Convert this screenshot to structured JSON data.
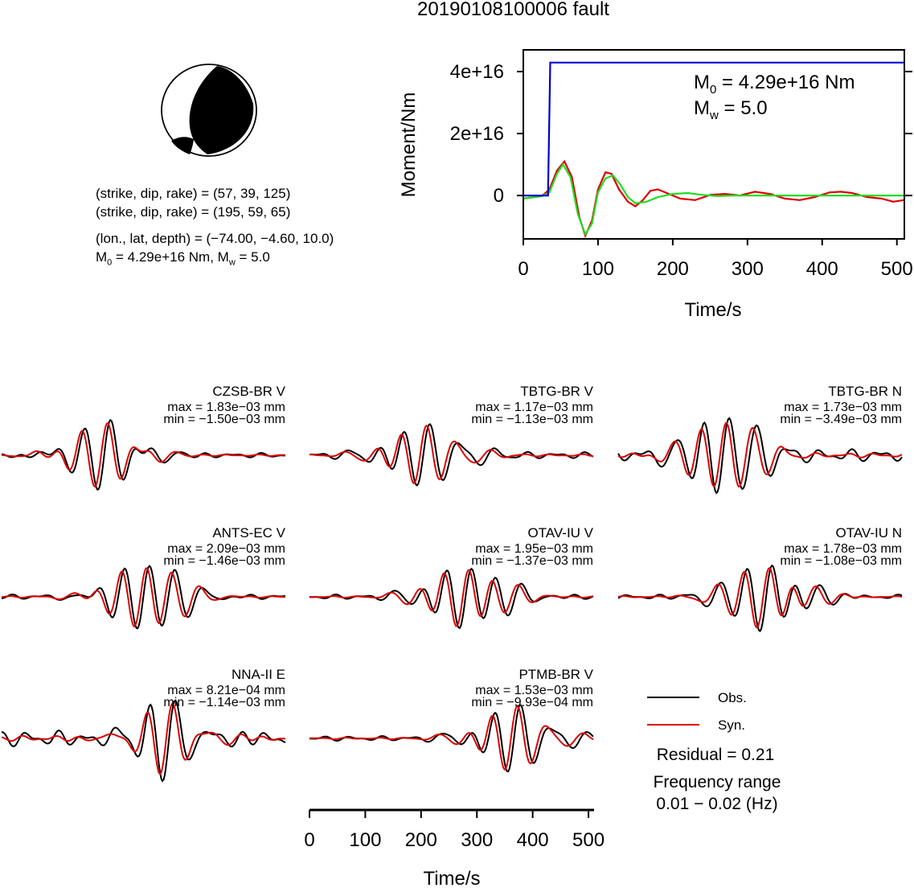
{
  "title": "20190108100006 fault",
  "mechanism": {
    "line1": "(strike, dip, rake) = (57, 39, 125)",
    "line2": "(strike, dip, rake) = (195, 59, 65)",
    "line3": "(lon., lat, depth) = (−74.00, −4.60, 10.0)",
    "line4_m0": "4.29e+16 Nm",
    "line4_mw": "5.0"
  },
  "stf_chart": {
    "type": "line",
    "xlabel": "Time/s",
    "ylabel": "Moment/Nm",
    "x_ticks": [
      "0",
      "100",
      "200",
      "300",
      "400",
      "500"
    ],
    "y_ticks": [
      "0",
      "2e+16",
      "4e+16"
    ],
    "xlim": [
      0,
      510
    ],
    "ylim": [
      -1.4e+16,
      4.7e+16
    ],
    "annot_m0_value": "4.29e+16 Nm",
    "annot_mw_value": "5.0",
    "colors": {
      "moment": "#0000cc",
      "rate_red": "#dd0000",
      "rate_green": "#22dd22"
    }
  },
  "chart_data": [
    {
      "type": "line",
      "title": "",
      "xlabel": "Time/s",
      "ylabel": "Moment/Nm",
      "xlim": [
        0,
        510
      ],
      "ylim": [
        -1.4e+16,
        4.7e+16
      ],
      "series": [
        {
          "color": "#0000cc",
          "x": [
            0,
            33,
            36,
            509
          ],
          "values": [
            0,
            0,
            4.29e+16,
            4.29e+16
          ]
        },
        {
          "color": "#dd0000",
          "x": [
            0,
            25,
            35,
            45,
            55,
            65,
            75,
            83,
            92,
            100,
            110,
            118,
            128,
            140,
            150,
            160,
            170,
            180,
            195,
            210,
            230,
            250,
            270,
            290,
            310,
            330,
            350,
            370,
            390,
            410,
            425,
            440,
            460,
            480,
            495,
            509
          ],
          "values": [
            -1000000000000000.0,
            -200000000000000.0,
            2000000000000000.0,
            8000000000000000.0,
            1.1e+16,
            6000000000000000.0,
            -7000000000000000.0,
            -1.3e+16,
            -8000000000000000.0,
            2000000000000000.0,
            7500000000000000.0,
            7000000000000000.0,
            2000000000000000.0,
            -2000000000000000.0,
            -3500000000000000.0,
            -1500000000000000.0,
            1500000000000000.0,
            2000000000000000.0,
            500000000000000.0,
            -1000000000000000.0,
            -1500000000000000.0,
            200000000000000.0,
            500000000000000.0,
            0.0,
            1200000000000000.0,
            500000000000000.0,
            -1000000000000000.0,
            -1500000000000000.0,
            -500000000000000.0,
            1000000000000000.0,
            1200000000000000.0,
            800000000000000.0,
            -500000000000000.0,
            -1000000000000000.0,
            -2000000000000000.0,
            -1500000000000000.0
          ]
        },
        {
          "color": "#22dd22",
          "x": [
            0,
            25,
            35,
            45,
            53,
            63,
            73,
            83,
            92,
            100,
            110,
            120,
            130,
            140,
            150,
            165,
            180,
            200,
            220,
            240,
            260,
            280,
            300,
            320,
            509
          ],
          "values": [
            -1000000000000000.0,
            -200000000000000.0,
            1000000000000000.0,
            7000000000000000.0,
            1e+16,
            6000000000000000.0,
            -6000000000000000.0,
            -1.25e+16,
            -9000000000000000.0,
            1000000000000000.0,
            5500000000000000.0,
            6500000000000000.0,
            3500000000000000.0,
            -500000000000000.0,
            -2500000000000000.0,
            -2000000000000000.0,
            -500000000000000.0,
            500000000000000.0,
            800000000000000.0,
            200000000000000.0,
            -200000000000000.0,
            0.0,
            0.0,
            0.0,
            0.0
          ]
        }
      ]
    },
    {
      "type": "line",
      "title": "",
      "xlabel": "Time/s",
      "x_ticks": [
        "0",
        "100",
        "200",
        "300",
        "400",
        "500"
      ],
      "xlim": [
        0,
        510
      ],
      "legend": [
        "Obs.",
        "Syn."
      ]
    }
  ],
  "stations": [
    {
      "name": "CZSB-BR V",
      "max": "max = 1.83e−03 mm",
      "min": "min = −1.50e−03 mm"
    },
    {
      "name": "TBTG-BR V",
      "max": "max = 1.17e−03 mm",
      "min": "min = −1.13e−03 mm"
    },
    {
      "name": "TBTG-BR N",
      "max": "max = 1.73e−03 mm",
      "min": "min = −3.49e−03 mm"
    },
    {
      "name": "ANTS-EC V",
      "max": "max = 2.09e−03 mm",
      "min": "min = −1.46e−03 mm"
    },
    {
      "name": "OTAV-IU V",
      "max": "max = 1.95e−03 mm",
      "min": "min = −1.37e−03 mm"
    },
    {
      "name": "OTAV-IU N",
      "max": "max = 1.78e−03 mm",
      "min": "min = −1.08e−03 mm"
    },
    {
      "name": "NNA-II E",
      "max": "max = 8.21e−04 mm",
      "min": "min = −1.14e−03 mm"
    },
    {
      "name": "PTMB-BR V",
      "max": "max = 1.53e−03 mm",
      "min": "min = −9.93e−04 mm"
    }
  ],
  "legend": {
    "obs": "Obs.",
    "syn": "Syn.",
    "obs_color": "#000000",
    "syn_color": "#dd0000"
  },
  "residual": "Residual = 0.21",
  "freq_label": "Frequency range",
  "freq_value": "0.01 − 0.02 (Hz)",
  "waveform_axis": {
    "xlabel": "Time/s",
    "ticks": [
      "0",
      "100",
      "200",
      "300",
      "400",
      "500"
    ]
  }
}
